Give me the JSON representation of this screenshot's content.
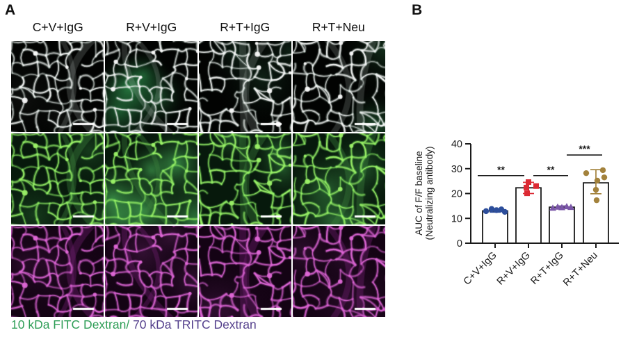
{
  "figure": {
    "panel_a_label": "A",
    "panel_b_label": "B"
  },
  "panel_a": {
    "column_headers": [
      "C+V+IgG",
      "R+V+IgG",
      "R+T+IgG",
      "R+T+Neu"
    ],
    "channels": [
      {
        "name": "merge",
        "bg": "#020302",
        "vessel": "#f5f5f5",
        "glow": "rgba(225,250,235,0.22)",
        "thick": "rgba(185,195,190,0.20)",
        "haze": [
          {
            "color": "rgba(150,160,150,0.07)",
            "n": 2
          },
          {
            "color": "rgba(60,190,100,0.40)",
            "n": 5
          },
          {
            "color": "rgba(45,110,70,0.26)",
            "n": 3
          },
          {
            "color": "rgba(55,140,80,0.28)",
            "n": 3
          }
        ]
      },
      {
        "name": "FITC",
        "bg": "#07190c",
        "vessel": "#9aef66",
        "glow": "rgba(110,220,90,0.30)",
        "thick": "rgba(60,130,60,0.38)",
        "haze": [
          {
            "color": "rgba(70,170,80,0.22)",
            "n": 3
          },
          {
            "color": "rgba(90,220,110,0.50)",
            "n": 6
          },
          {
            "color": "rgba(80,190,95,0.30)",
            "n": 3
          },
          {
            "color": "rgba(85,200,100,0.34)",
            "n": 4
          }
        ]
      },
      {
        "name": "TRITC",
        "bg": "#140314",
        "vessel": "#dc66d4",
        "glow": "rgba(210,90,205,0.28)",
        "thick": "rgba(110,30,110,0.40)",
        "haze": [
          {
            "color": "rgba(180,70,180,0.10)",
            "n": 2
          },
          {
            "color": "rgba(200,80,200,0.16)",
            "n": 3
          },
          {
            "color": "rgba(185,75,185,0.11)",
            "n": 2
          },
          {
            "color": "rgba(195,80,195,0.13)",
            "n": 3
          }
        ]
      }
    ],
    "scale_bar_color": "#ffffff",
    "caption": {
      "fitc_text": "10 kDa FITC Dextran/",
      "tritc_text": " 70 kDa TRITC Dextran",
      "fitc_color": "#2f9e57",
      "tritc_color": "#55418d"
    }
  },
  "chart_data": {
    "type": "bar",
    "title": "",
    "categories": [
      "C+V+IgG",
      "R+V+IgG",
      "R+T+IgG",
      "R+T+Neu"
    ],
    "values": [
      13.0,
      22.3,
      14.5,
      24.3
    ],
    "error_low": [
      12.5,
      20.0,
      14.0,
      19.9
    ],
    "error_high": [
      13.5,
      24.5,
      15.0,
      29.6
    ],
    "points": [
      [
        12.9,
        13.8,
        13.3,
        13.6,
        12.6
      ],
      [
        24.6,
        22.4,
        23.0,
        20.1
      ],
      [
        14.2,
        14.6,
        14.4,
        14.8,
        14.5
      ],
      [
        28.2,
        29.4,
        26.5,
        25.2,
        21.5,
        17.3
      ]
    ],
    "point_x_offsets": [
      [
        -13,
        -5,
        2,
        9,
        14
      ],
      [
        0,
        -3,
        11,
        -2
      ],
      [
        -13,
        -6,
        0,
        7,
        13
      ],
      [
        -14,
        10,
        12,
        2,
        0,
        1
      ]
    ],
    "group_colors": [
      "#2d4e9b",
      "#dc2a33",
      "#7b57a8",
      "#a3823c"
    ],
    "point_shapes": [
      "circle",
      "square",
      "triangle",
      "circle"
    ],
    "bar_fill": "#ffffff",
    "bar_stroke": "#1a1a1a",
    "axis_color": "#1a1a1a",
    "ylabel_line1": "AUC of F/F baseline",
    "ylabel_line2": "(Neutralizing antibody)",
    "ylim": [
      0,
      40
    ],
    "yticks": [
      0,
      10,
      20,
      30,
      40
    ],
    "legend_position": "none",
    "grid": false,
    "significance": [
      {
        "from": 0,
        "to": 1,
        "label": "**",
        "y": 27.2
      },
      {
        "from": 1,
        "to": 2,
        "label": "**",
        "y": 27.2
      },
      {
        "from": 2,
        "to": 3,
        "label": "***",
        "y": 35.5
      }
    ]
  }
}
